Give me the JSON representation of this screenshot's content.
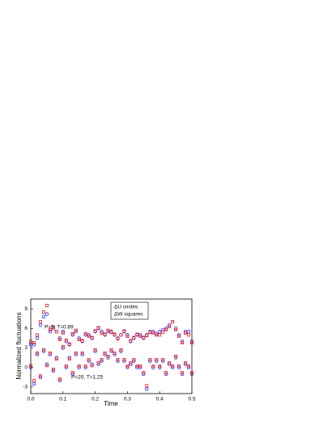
{
  "chart_data": {
    "type": "scatter",
    "xlabel": "Time",
    "ylabel": "Normalized fluctuations",
    "xlim": [
      0,
      0.5
    ],
    "ylim": [
      -4,
      10.5
    ],
    "xticks": [
      {
        "value": 0,
        "label": "0.0"
      },
      0.1,
      0.2,
      0.3,
      0.4,
      0.5
    ],
    "yticks": [
      -3,
      0,
      3,
      6,
      9
    ],
    "legend": [
      "ΔU circles",
      "ΔW squares"
    ],
    "x": [
      0,
      0.01,
      0.02,
      0.03,
      0.04,
      0.05,
      0.06,
      0.07,
      0.08,
      0.09,
      0.1,
      0.11,
      0.12,
      0.13,
      0.14,
      0.15,
      0.16,
      0.17,
      0.18,
      0.19,
      0.2,
      0.21,
      0.22,
      0.23,
      0.24,
      0.25,
      0.26,
      0.27,
      0.28,
      0.29,
      0.3,
      0.31,
      0.32,
      0.33,
      0.34,
      0.35,
      0.36,
      0.37,
      0.38,
      0.39,
      0.4,
      0.41,
      0.42,
      0.43,
      0.44,
      0.45,
      0.46,
      0.47,
      0.48,
      0.49,
      0.5
    ],
    "groups": [
      {
        "label": "P=5, T=0.89",
        "series": [
          {
            "marker": "circle",
            "color": "#2222ee",
            "values": [
              3.5,
              3.5,
              4.5,
              6.5,
              7.8,
              8.2,
              5.5,
              6,
              5.5,
              4.5,
              5.5,
              4,
              3.5,
              5,
              5.5,
              4.5,
              4,
              5,
              5,
              4.5,
              5.5,
              6,
              5.5,
              5,
              5.5,
              5.5,
              5,
              4.5,
              5,
              5.5,
              5,
              4,
              4.5,
              5,
              5,
              4.5,
              5,
              5.5,
              5.5,
              5.2,
              5.5,
              5.8,
              6,
              6.5,
              7,
              6,
              5,
              4,
              5.5,
              5.5,
              4
            ]
          },
          {
            "marker": "square",
            "color": "#ee2222",
            "values": [
              4,
              3.8,
              5,
              7,
              8.5,
              9.5,
              5.8,
              6.2,
              5.5,
              4.3,
              5.3,
              4.2,
              3.6,
              5.2,
              5.7,
              4.3,
              4.1,
              5.2,
              4.8,
              4.6,
              5.6,
              6.1,
              5.3,
              5.1,
              5.7,
              5.4,
              5.1,
              4.4,
              5,
              5.6,
              4.8,
              4.1,
              4.6,
              5.1,
              4.8,
              4.6,
              4.9,
              5.4,
              5.3,
              5,
              5,
              5.4,
              5.8,
              6.3,
              7,
              5.8,
              4.8,
              3.8,
              5.3,
              5,
              3.8
            ]
          }
        ]
      },
      {
        "label": "P=20, T=1.25",
        "series": [
          {
            "marker": "circle",
            "color": "#2222ee",
            "values": [
              0,
              -2.5,
              2,
              -1.5,
              2.5,
              0.5,
              2,
              -0.5,
              1.5,
              -2,
              3,
              0,
              1.5,
              -1,
              2,
              0,
              2,
              0,
              1,
              0.5,
              2.5,
              0.5,
              1,
              2,
              1.5,
              2.5,
              2,
              1,
              2.5,
              1,
              0,
              0.5,
              1,
              0,
              0,
              -1,
              -3.3,
              1,
              0,
              1,
              0,
              1,
              -1,
              0.5,
              0,
              1.5,
              0,
              -1,
              0.5,
              0,
              -1
            ]
          },
          {
            "marker": "square",
            "color": "#ee2222",
            "values": [
              0.3,
              -2,
              2.2,
              -1.3,
              2.7,
              0.3,
              2.2,
              -0.3,
              1.3,
              -1.8,
              3.2,
              0.2,
              1.3,
              -0.8,
              2.2,
              0.2,
              2.2,
              0.2,
              1.2,
              0.3,
              2.7,
              0.7,
              1.2,
              2.2,
              1.7,
              2.7,
              2.2,
              1.2,
              2.7,
              1.2,
              0.2,
              0.7,
              1.2,
              0.2,
              0.2,
              -0.8,
              -2.8,
              1.2,
              0.2,
              1.2,
              0.2,
              1.2,
              -0.8,
              0.7,
              0.2,
              1.7,
              0.2,
              -0.8,
              0.7,
              0.2,
              -0.8
            ]
          }
        ]
      }
    ]
  }
}
